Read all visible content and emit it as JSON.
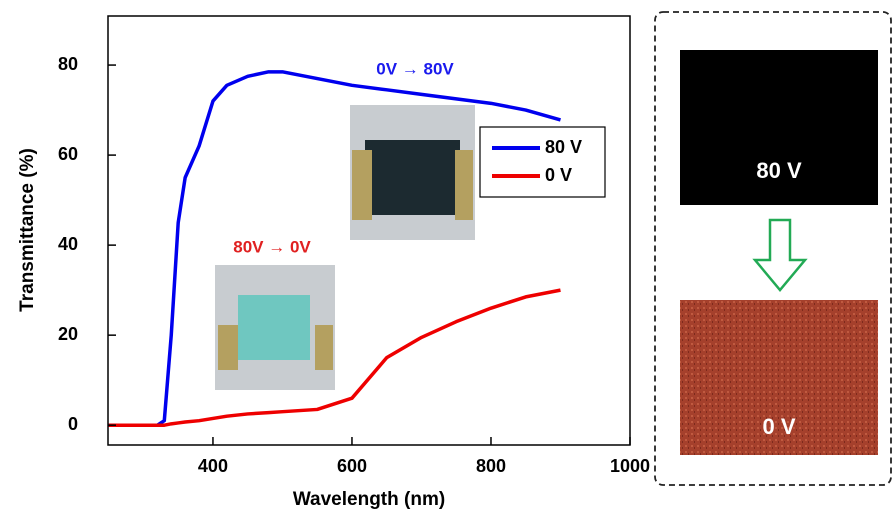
{
  "chart_data": {
    "type": "line",
    "xlabel": "Wavelength (nm)",
    "ylabel": "Transmittance (%)",
    "x": [
      250,
      320,
      330,
      340,
      350,
      360,
      380,
      400,
      420,
      450,
      480,
      500,
      550,
      600,
      650,
      700,
      750,
      800,
      850,
      900
    ],
    "series": [
      {
        "name": "80 V",
        "color": "#0000ee",
        "values": [
          0,
          0,
          1,
          20,
          45,
          55,
          62,
          72,
          75.5,
          77.5,
          78.5,
          78.5,
          77,
          75.5,
          74.5,
          73.5,
          72.5,
          71.5,
          70,
          67.8
        ]
      },
      {
        "name": "0 V",
        "color": "#ee0000",
        "values": [
          0,
          0,
          0,
          0.3,
          0.5,
          0.7,
          1,
          1.5,
          2,
          2.5,
          2.8,
          3,
          3.5,
          6,
          15,
          19.5,
          23,
          26,
          28.5,
          30
        ]
      }
    ],
    "xlim": [
      249,
      1000
    ],
    "xticks": [
      400,
      600,
      800,
      1000
    ],
    "ylim": [
      -4.4,
      90.9
    ],
    "yticks": [
      0,
      20,
      40,
      60,
      80
    ],
    "annotations": [
      {
        "text": "0V → 80V",
        "color": "#1a1aee"
      },
      {
        "text": "80V → 0V",
        "color": "#e02020"
      }
    ]
  },
  "panel": {
    "labels": [
      "80 V",
      "0 V"
    ]
  }
}
